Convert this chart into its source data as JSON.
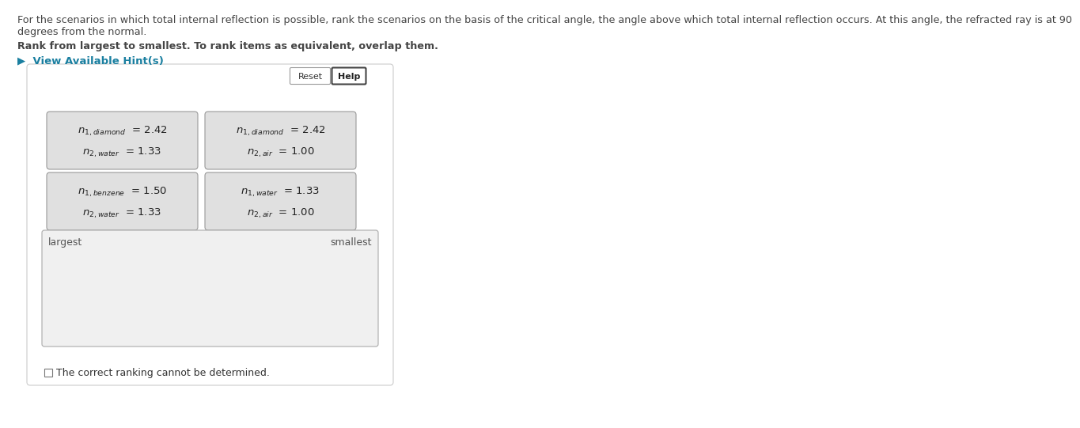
{
  "title_line1": "For the scenarios in which total internal reflection is possible, rank the scenarios on the basis of the critical angle, the angle above which total internal reflection occurs. At this angle, the refracted ray is at 90",
  "title_line2": "degrees from the normal.",
  "bold_text": "Rank from largest to smallest. To rank items as equivalent, overlap them.",
  "hint_text": "▶  View Available Hint(s)",
  "hint_color": "#1a7fa0",
  "title_color": "#444444",
  "bg_color": "#ffffff",
  "card_bg": "#e0e0e0",
  "card_border": "#999999",
  "ranking_bg": "#f0f0f0",
  "ranking_border": "#aaaaaa",
  "panel_border": "#cccccc",
  "cards": [
    {
      "line1_sub": "1,diamond",
      "line1_value": "= 2.42",
      "line2_sub": "2,water",
      "line2_value": "= 1.33"
    },
    {
      "line1_sub": "1,diamond",
      "line1_value": "= 2.42",
      "line2_sub": "2,air",
      "line2_value": "= 1.00"
    },
    {
      "line1_sub": "1,benzene",
      "line1_value": "= 1.50",
      "line2_sub": "2,water",
      "line2_value": "= 1.33"
    },
    {
      "line1_sub": "1,water",
      "line1_value": "= 1.33",
      "line2_sub": "2,air",
      "line2_value": "= 1.00"
    }
  ],
  "reset_text": "Reset",
  "help_text": "Help",
  "largest_text": "largest",
  "smallest_text": "smallest",
  "checkbox_text": "The correct ranking cannot be determined."
}
